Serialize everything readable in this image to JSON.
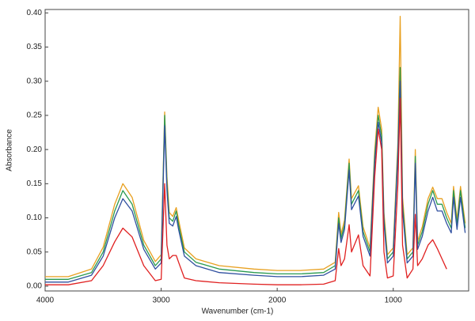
{
  "chart_data": {
    "type": "line",
    "x_label": "Wavenumber  (cm-1)",
    "y_label": "Absorbance",
    "x": [
      4000,
      3800,
      3600,
      3500,
      3400,
      3330,
      3250,
      3150,
      3050,
      3000,
      2970,
      2950,
      2930,
      2900,
      2870,
      2850,
      2800,
      2700,
      2500,
      2200,
      2000,
      1800,
      1600,
      1500,
      1470,
      1450,
      1420,
      1380,
      1360,
      1300,
      1260,
      1200,
      1160,
      1130,
      1100,
      1080,
      1050,
      1000,
      960,
      940,
      920,
      880,
      830,
      810,
      790,
      750,
      700,
      660,
      620,
      580,
      540,
      500,
      480,
      450,
      420,
      380
    ],
    "series": [
      {
        "color": "#e8a020",
        "values": [
          0.014,
          0.014,
          0.025,
          0.057,
          0.12,
          0.15,
          0.13,
          0.067,
          0.036,
          0.046,
          0.255,
          0.16,
          0.108,
          0.102,
          0.115,
          0.097,
          0.056,
          0.04,
          0.03,
          0.025,
          0.023,
          0.023,
          0.025,
          0.035,
          0.108,
          0.076,
          0.097,
          0.186,
          0.128,
          0.147,
          0.087,
          0.056,
          0.198,
          0.262,
          0.23,
          0.108,
          0.046,
          0.056,
          0.21,
          0.395,
          0.13,
          0.046,
          0.056,
          0.2,
          0.066,
          0.087,
          0.128,
          0.145,
          0.128,
          0.128,
          0.108,
          0.092,
          0.146,
          0.097,
          0.146,
          0.092
        ]
      },
      {
        "color": "#2a9a50",
        "values": [
          0.01,
          0.01,
          0.02,
          0.05,
          0.11,
          0.14,
          0.12,
          0.06,
          0.03,
          0.04,
          0.25,
          0.15,
          0.1,
          0.095,
          0.11,
          0.09,
          0.05,
          0.035,
          0.025,
          0.02,
          0.018,
          0.018,
          0.02,
          0.03,
          0.1,
          0.07,
          0.09,
          0.18,
          0.12,
          0.14,
          0.08,
          0.05,
          0.19,
          0.25,
          0.22,
          0.1,
          0.04,
          0.05,
          0.2,
          0.32,
          0.12,
          0.04,
          0.05,
          0.19,
          0.06,
          0.08,
          0.12,
          0.14,
          0.12,
          0.12,
          0.1,
          0.085,
          0.14,
          0.09,
          0.14,
          0.085
        ]
      },
      {
        "color": "#3050a0",
        "values": [
          0.006,
          0.006,
          0.016,
          0.044,
          0.1,
          0.128,
          0.11,
          0.054,
          0.025,
          0.034,
          0.235,
          0.14,
          0.092,
          0.088,
          0.102,
          0.083,
          0.044,
          0.03,
          0.02,
          0.016,
          0.014,
          0.014,
          0.016,
          0.025,
          0.092,
          0.064,
          0.083,
          0.17,
          0.112,
          0.132,
          0.073,
          0.044,
          0.18,
          0.24,
          0.21,
          0.092,
          0.034,
          0.044,
          0.19,
          0.3,
          0.11,
          0.034,
          0.044,
          0.18,
          0.054,
          0.073,
          0.11,
          0.13,
          0.11,
          0.11,
          0.092,
          0.078,
          0.13,
          0.083,
          0.13,
          0.078
        ]
      },
      {
        "color": "#e02020",
        "values": [
          0.002,
          0.002,
          0.008,
          0.03,
          0.065,
          0.085,
          0.072,
          0.03,
          0.008,
          0.01,
          0.15,
          0.06,
          0.04,
          0.045,
          0.045,
          0.035,
          0.012,
          0.008,
          0.005,
          0.003,
          0.002,
          0.002,
          0.003,
          0.008,
          0.055,
          0.03,
          0.04,
          0.09,
          0.05,
          0.075,
          0.03,
          0.015,
          0.16,
          0.23,
          0.2,
          0.05,
          0.012,
          0.015,
          0.15,
          0.275,
          0.06,
          0.012,
          0.025,
          0.105,
          0.03,
          0.04,
          0.06,
          0.068,
          0.055,
          0.04,
          0.025,
          null,
          null,
          null,
          null,
          null
        ]
      }
    ],
    "xlim": [
      4000,
      350
    ],
    "xticks": [
      4000,
      3000,
      2000,
      1000
    ],
    "ylim": [
      -0.007,
      0.405
    ],
    "yticks": [
      {
        "value": 0,
        "label": "0.00"
      },
      {
        "value": 0.05,
        "label": "0.05"
      },
      {
        "value": 0.1,
        "label": "0.10"
      },
      {
        "value": 0.15,
        "label": "0.15"
      },
      {
        "value": 0.2,
        "label": "0.20"
      },
      {
        "value": 0.25,
        "label": "0.25"
      },
      {
        "value": 0.3,
        "label": "0.30"
      },
      {
        "value": 0.35,
        "label": "0.35"
      },
      {
        "value": 0.4,
        "label": "0.40"
      }
    ]
  }
}
